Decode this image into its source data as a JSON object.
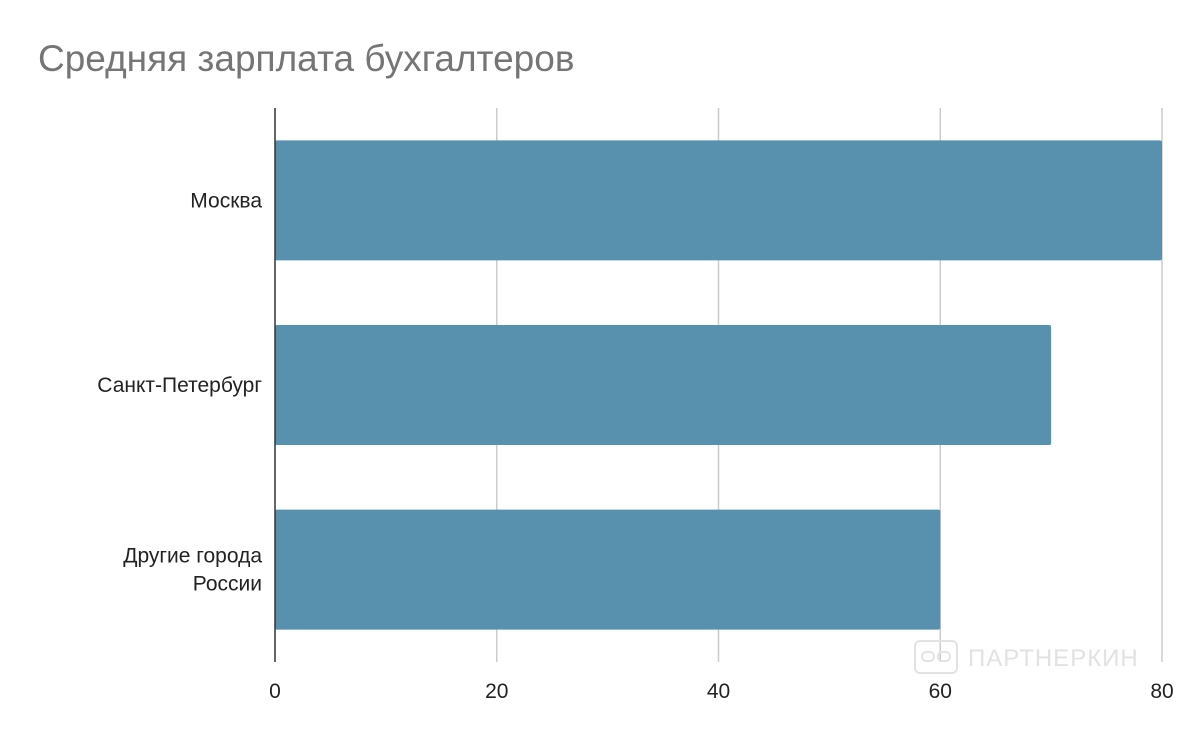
{
  "chart_data": {
    "type": "bar",
    "orientation": "horizontal",
    "title": "Средняя зарплата бухгалтеров",
    "categories": [
      "Москва",
      "Санкт-Петербург",
      "Другие города России"
    ],
    "category_lines": [
      [
        "Москва"
      ],
      [
        "Санкт-Петербург"
      ],
      [
        "Другие города",
        "России"
      ]
    ],
    "values": [
      80,
      70,
      60
    ],
    "xlim": [
      0,
      80
    ],
    "xticks": [
      "0",
      "20",
      "40",
      "60",
      "80"
    ],
    "grid": true,
    "legend": "none",
    "bar_color": "#5891ad",
    "grid_color": "#cccccc",
    "axis_color": "#333333"
  },
  "watermark": {
    "text": "ПАРТНЕРКИН",
    "icon": "partnerkin-logo-icon"
  }
}
